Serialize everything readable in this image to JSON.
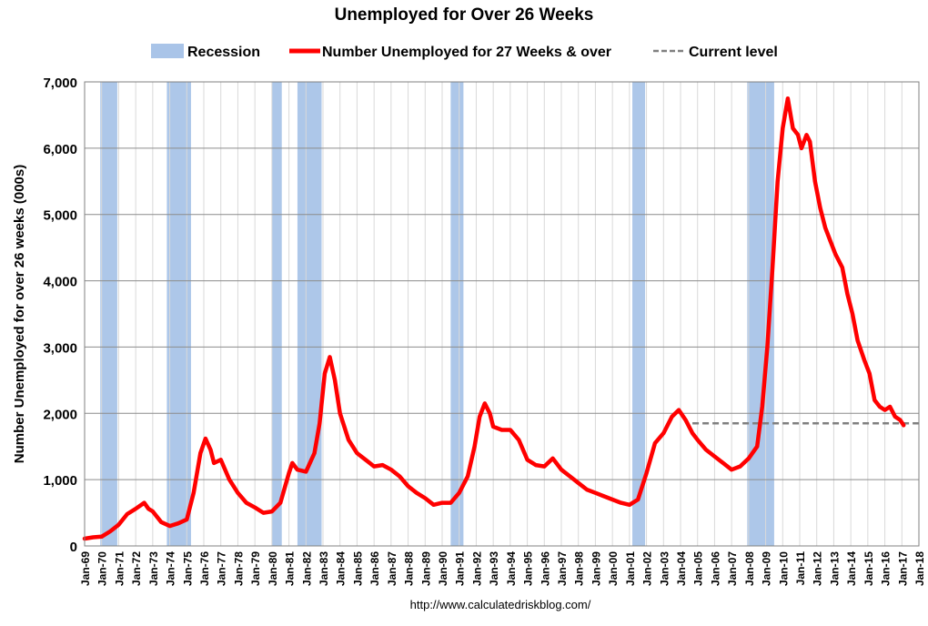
{
  "chart_data": {
    "type": "line",
    "title": "Unemployed for Over 26 Weeks",
    "ylabel": "Number Unemployed for over 26 weeks (000s)",
    "xlabel": "",
    "ylim": [
      0,
      7000
    ],
    "yticks": [
      0,
      1000,
      2000,
      3000,
      4000,
      5000,
      6000,
      7000
    ],
    "ytick_labels": [
      "0",
      "1,000",
      "2,000",
      "3,000",
      "4,000",
      "5,000",
      "6,000",
      "7,000"
    ],
    "xlim": [
      1969.0,
      2018.0
    ],
    "xtick_labels": [
      "Jan-69",
      "Jan-70",
      "Jan-71",
      "Jan-72",
      "Jan-73",
      "Jan-74",
      "Jan-75",
      "Jan-76",
      "Jan-77",
      "Jan-78",
      "Jan-79",
      "Jan-80",
      "Jan-81",
      "Jan-82",
      "Jan-83",
      "Jan-84",
      "Jan-85",
      "Jan-86",
      "Jan-87",
      "Jan-88",
      "Jan-89",
      "Jan-90",
      "Jan-91",
      "Jan-92",
      "Jan-93",
      "Jan-94",
      "Jan-95",
      "Jan-96",
      "Jan-97",
      "Jan-98",
      "Jan-99",
      "Jan-00",
      "Jan-01",
      "Jan-02",
      "Jan-03",
      "Jan-04",
      "Jan-05",
      "Jan-06",
      "Jan-07",
      "Jan-08",
      "Jan-09",
      "Jan-10",
      "Jan-11",
      "Jan-12",
      "Jan-13",
      "Jan-14",
      "Jan-15",
      "Jan-16",
      "Jan-17",
      "Jan-18"
    ],
    "grid": true,
    "legend_position": "top",
    "legend": [
      {
        "label": "Recession",
        "kind": "area",
        "color": "#a9c4e8"
      },
      {
        "label": "Number Unemployed for 27 Weeks & over",
        "kind": "line",
        "color": "#ff0000"
      },
      {
        "label": "Current level",
        "kind": "dashed",
        "color": "#808080"
      }
    ],
    "recessions": [
      {
        "start": 1969.92,
        "end": 1970.92
      },
      {
        "start": 1973.83,
        "end": 1975.25
      },
      {
        "start": 1980.0,
        "end": 1980.58
      },
      {
        "start": 1981.5,
        "end": 1982.92
      },
      {
        "start": 1990.5,
        "end": 1991.25
      },
      {
        "start": 2001.17,
        "end": 2001.92
      },
      {
        "start": 2007.92,
        "end": 2009.5
      }
    ],
    "current_level": {
      "value": 1850,
      "start": 2004.7,
      "end": 2018.0
    },
    "series": [
      {
        "name": "Number Unemployed for 27 Weeks & over",
        "color": "#ff0000",
        "points": [
          [
            1969.0,
            110
          ],
          [
            1969.5,
            130
          ],
          [
            1970.0,
            140
          ],
          [
            1970.5,
            220
          ],
          [
            1971.0,
            320
          ],
          [
            1971.5,
            480
          ],
          [
            1972.0,
            560
          ],
          [
            1972.5,
            650
          ],
          [
            1972.75,
            560
          ],
          [
            1973.0,
            520
          ],
          [
            1973.5,
            360
          ],
          [
            1974.0,
            300
          ],
          [
            1974.5,
            340
          ],
          [
            1975.0,
            400
          ],
          [
            1975.4,
            800
          ],
          [
            1975.8,
            1400
          ],
          [
            1976.1,
            1620
          ],
          [
            1976.4,
            1450
          ],
          [
            1976.6,
            1250
          ],
          [
            1977.0,
            1300
          ],
          [
            1977.5,
            1000
          ],
          [
            1978.0,
            800
          ],
          [
            1978.5,
            650
          ],
          [
            1979.0,
            580
          ],
          [
            1979.5,
            500
          ],
          [
            1980.0,
            520
          ],
          [
            1980.5,
            650
          ],
          [
            1981.0,
            1100
          ],
          [
            1981.2,
            1250
          ],
          [
            1981.5,
            1150
          ],
          [
            1982.0,
            1120
          ],
          [
            1982.5,
            1400
          ],
          [
            1982.8,
            1850
          ],
          [
            1983.1,
            2600
          ],
          [
            1983.4,
            2850
          ],
          [
            1983.7,
            2500
          ],
          [
            1984.0,
            2000
          ],
          [
            1984.5,
            1600
          ],
          [
            1985.0,
            1400
          ],
          [
            1985.5,
            1300
          ],
          [
            1986.0,
            1200
          ],
          [
            1986.5,
            1220
          ],
          [
            1987.0,
            1150
          ],
          [
            1987.5,
            1050
          ],
          [
            1988.0,
            900
          ],
          [
            1988.5,
            800
          ],
          [
            1989.0,
            720
          ],
          [
            1989.5,
            620
          ],
          [
            1990.0,
            650
          ],
          [
            1990.5,
            650
          ],
          [
            1991.0,
            800
          ],
          [
            1991.5,
            1050
          ],
          [
            1991.9,
            1500
          ],
          [
            1992.2,
            1950
          ],
          [
            1992.5,
            2150
          ],
          [
            1992.8,
            2000
          ],
          [
            1993.0,
            1800
          ],
          [
            1993.5,
            1750
          ],
          [
            1994.0,
            1750
          ],
          [
            1994.5,
            1600
          ],
          [
            1995.0,
            1300
          ],
          [
            1995.5,
            1220
          ],
          [
            1996.0,
            1200
          ],
          [
            1996.5,
            1320
          ],
          [
            1997.0,
            1150
          ],
          [
            1997.5,
            1050
          ],
          [
            1998.0,
            950
          ],
          [
            1998.5,
            850
          ],
          [
            1999.0,
            800
          ],
          [
            1999.5,
            750
          ],
          [
            2000.0,
            700
          ],
          [
            2000.5,
            650
          ],
          [
            2001.0,
            620
          ],
          [
            2001.5,
            700
          ],
          [
            2002.0,
            1100
          ],
          [
            2002.5,
            1550
          ],
          [
            2003.0,
            1700
          ],
          [
            2003.5,
            1950
          ],
          [
            2003.9,
            2050
          ],
          [
            2004.3,
            1900
          ],
          [
            2004.7,
            1700
          ],
          [
            2005.0,
            1600
          ],
          [
            2005.5,
            1450
          ],
          [
            2006.0,
            1350
          ],
          [
            2006.5,
            1250
          ],
          [
            2007.0,
            1150
          ],
          [
            2007.5,
            1200
          ],
          [
            2008.0,
            1320
          ],
          [
            2008.5,
            1500
          ],
          [
            2008.8,
            2100
          ],
          [
            2009.1,
            3000
          ],
          [
            2009.4,
            4200
          ],
          [
            2009.7,
            5500
          ],
          [
            2010.0,
            6300
          ],
          [
            2010.3,
            6750
          ],
          [
            2010.6,
            6300
          ],
          [
            2010.9,
            6200
          ],
          [
            2011.1,
            6000
          ],
          [
            2011.4,
            6200
          ],
          [
            2011.6,
            6100
          ],
          [
            2011.9,
            5500
          ],
          [
            2012.2,
            5100
          ],
          [
            2012.5,
            4800
          ],
          [
            2012.8,
            4600
          ],
          [
            2013.1,
            4400
          ],
          [
            2013.5,
            4200
          ],
          [
            2013.8,
            3800
          ],
          [
            2014.1,
            3500
          ],
          [
            2014.4,
            3100
          ],
          [
            2014.8,
            2800
          ],
          [
            2015.1,
            2600
          ],
          [
            2015.4,
            2200
          ],
          [
            2015.7,
            2100
          ],
          [
            2016.0,
            2050
          ],
          [
            2016.3,
            2100
          ],
          [
            2016.6,
            1950
          ],
          [
            2016.9,
            1900
          ],
          [
            2017.1,
            1820
          ]
        ]
      }
    ]
  },
  "source": "http://www.calculatedriskblog.com/"
}
